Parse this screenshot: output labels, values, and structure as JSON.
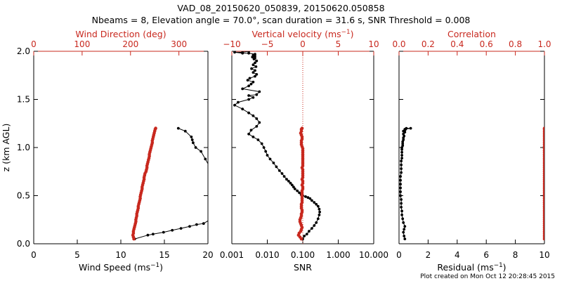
{
  "page": {
    "title_line1": "VAD_08_20150620_050839, 20150620.050858",
    "title_line2": "Nbeams = 8, Elevation angle = 70.0°, scan duration = 31.6 s, SNR Threshold = 0.008",
    "footer": "Plot created on Mon Oct 12 20:28:45 2015"
  },
  "colors": {
    "primary": "#000000",
    "accent": "#c8281e",
    "background": "#ffffff"
  },
  "chart_data": [
    {
      "type": "line",
      "panel": "wind",
      "ylabel": "z (km AGL)",
      "ylim": [
        0,
        2.0
      ],
      "y_ticks": [
        0.0,
        0.5,
        1.0,
        1.5,
        2.0
      ],
      "y_tick_labels": [
        "0.0",
        "0.5",
        "1.0",
        "1.5",
        "2.0"
      ],
      "xlabel_bottom": "Wind Speed (ms-1)",
      "xlim_bottom": [
        0,
        20
      ],
      "x_ticks_bottom": [
        0,
        5,
        10,
        15,
        20
      ],
      "x_tick_labels_bottom": [
        "0",
        "5",
        "10",
        "15",
        "20"
      ],
      "xlabel_top": "Wind Direction (deg)",
      "xlim_top": [
        0,
        360
      ],
      "x_ticks_top": [
        0,
        100,
        200,
        300
      ],
      "x_tick_labels_top": [
        "0",
        "100",
        "200",
        "300"
      ],
      "series": [
        {
          "axis": "bottom",
          "marker": "dot",
          "color": "#000000",
          "x": [
            11.6,
            13.1,
            13.7,
            14.9,
            15.9,
            16.9,
            17.9,
            18.7,
            19.5,
            20.2,
            20.2,
            19.7,
            19.2,
            18.6,
            18.3,
            18.2,
            18.1,
            17.4,
            16.6
          ],
          "y": [
            0.05,
            0.09,
            0.1,
            0.12,
            0.14,
            0.16,
            0.18,
            0.2,
            0.21,
            0.25,
            0.8,
            0.88,
            0.96,
            1.0,
            1.05,
            1.08,
            1.11,
            1.17,
            1.2
          ]
        },
        {
          "axis": "top",
          "marker": "dot",
          "color": "#c8281e",
          "x": [
            207,
            206,
            205,
            206,
            206,
            207,
            208,
            209,
            210,
            211,
            211,
            212,
            213,
            213,
            214,
            215,
            216,
            216,
            217,
            218,
            219,
            220,
            220,
            221,
            222,
            223,
            224,
            224,
            225,
            226,
            227,
            228,
            228,
            229,
            230,
            232,
            233,
            234,
            234,
            235,
            236,
            237,
            238,
            239,
            239,
            240,
            241,
            242,
            243,
            244,
            245,
            245,
            246,
            247,
            248,
            249,
            250,
            251,
            252
          ],
          "y": [
            0.05,
            0.07,
            0.09,
            0.11,
            0.13,
            0.15,
            0.17,
            0.19,
            0.21,
            0.23,
            0.25,
            0.27,
            0.29,
            0.31,
            0.33,
            0.35,
            0.37,
            0.39,
            0.41,
            0.43,
            0.45,
            0.47,
            0.49,
            0.51,
            0.53,
            0.55,
            0.57,
            0.59,
            0.61,
            0.63,
            0.65,
            0.67,
            0.69,
            0.71,
            0.73,
            0.75,
            0.77,
            0.79,
            0.81,
            0.83,
            0.85,
            0.87,
            0.89,
            0.91,
            0.93,
            0.95,
            0.97,
            0.99,
            1.01,
            1.03,
            1.05,
            1.07,
            1.09,
            1.11,
            1.13,
            1.15,
            1.17,
            1.19,
            1.2
          ]
        }
      ]
    },
    {
      "type": "line",
      "panel": "snr",
      "ylim": [
        0,
        2.0
      ],
      "y_ticks": [
        0.0,
        0.5,
        1.0,
        1.5,
        2.0
      ],
      "xlabel_bottom": "SNR",
      "xscale_bottom": "log",
      "xlim_bottom": [
        0.001,
        10
      ],
      "x_ticks_bottom": [
        0.001,
        0.01,
        0.1,
        1,
        10
      ],
      "x_tick_labels_bottom": [
        "0.001",
        "0.010",
        "0.100",
        "1.000",
        "10.000"
      ],
      "xlabel_top": "Vertical velocity (ms-1)",
      "xlim_top": [
        -10,
        10
      ],
      "x_ticks_top": [
        -10,
        -5,
        0,
        5,
        10
      ],
      "x_tick_labels_top": [
        "−10",
        "−5",
        "0",
        "5",
        "10"
      ],
      "reference_line_top_x": 0,
      "series": [
        {
          "axis": "bottom",
          "marker": "dot",
          "color": "#000000",
          "x": [
            0.1,
            0.11,
            0.13,
            0.15,
            0.18,
            0.21,
            0.24,
            0.27,
            0.29,
            0.3,
            0.29,
            0.27,
            0.24,
            0.21,
            0.18,
            0.16,
            0.14,
            0.12,
            0.1,
            0.09,
            0.08,
            0.07,
            0.06,
            0.055,
            0.05,
            0.045,
            0.04,
            0.035,
            0.03,
            0.026,
            0.022,
            0.018,
            0.015,
            0.012,
            0.01,
            0.009,
            0.008,
            0.007,
            0.0055,
            0.004,
            0.003,
            0.0035,
            0.005,
            0.006,
            0.005,
            0.004,
            0.003,
            0.002,
            0.0012,
            0.0015,
            0.003,
            0.004,
            0.003,
            0.005,
            0.006,
            0.002,
            0.003,
            0.0035,
            0.004,
            0.0028,
            0.0032,
            0.0045,
            0.005,
            0.004,
            0.0045,
            0.0036,
            0.0048,
            0.004,
            0.0045,
            0.005,
            0.0042,
            0.0045,
            0.0038,
            0.0045,
            0.004,
            0.0045,
            0.003,
            0.002,
            0.0012,
            0.002,
            0.003
          ],
          "y": [
            0.05,
            0.08,
            0.1,
            0.13,
            0.16,
            0.19,
            0.22,
            0.26,
            0.3,
            0.33,
            0.36,
            0.39,
            0.41,
            0.43,
            0.45,
            0.47,
            0.48,
            0.49,
            0.5,
            0.51,
            0.53,
            0.55,
            0.57,
            0.59,
            0.61,
            0.63,
            0.65,
            0.67,
            0.7,
            0.73,
            0.76,
            0.8,
            0.84,
            0.88,
            0.92,
            0.96,
            1.0,
            1.04,
            1.08,
            1.11,
            1.14,
            1.18,
            1.22,
            1.26,
            1.3,
            1.33,
            1.36,
            1.4,
            1.44,
            1.47,
            1.5,
            1.52,
            1.54,
            1.55,
            1.58,
            1.61,
            1.64,
            1.66,
            1.68,
            1.7,
            1.72,
            1.74,
            1.76,
            1.78,
            1.8,
            1.82,
            1.84,
            1.86,
            1.88,
            1.9,
            1.92,
            1.93,
            1.94,
            1.95,
            1.96,
            1.97,
            1.98,
            1.98,
            1.99,
            1.99,
            2.0
          ]
        },
        {
          "axis": "top",
          "marker": "dot",
          "color": "#c8281e",
          "x": [
            -0.2,
            -0.4,
            -0.6,
            -0.5,
            -0.3,
            -0.2,
            -0.1,
            -0.2,
            -0.3,
            -0.4,
            -0.4,
            -0.3,
            -0.2,
            -0.2,
            -0.1,
            -0.1,
            -0.2,
            -0.2,
            -0.2,
            -0.1,
            -0.1,
            -0.1,
            -0.1,
            -0.1,
            -0.1,
            -0.1,
            0.0,
            0.0,
            -0.1,
            0.0,
            0.0,
            -0.1,
            0.0,
            0.0,
            0.0,
            0.0,
            0.0,
            -0.1,
            0.0,
            0.0,
            0.0,
            0.0,
            0.0,
            0.0,
            0.0,
            0.0,
            0.0,
            0.0,
            -0.1,
            -0.2,
            -0.2,
            -0.2,
            -0.1,
            -0.1,
            -0.2,
            -0.3,
            -0.2,
            -0.2,
            -0.1
          ],
          "y": [
            0.05,
            0.07,
            0.09,
            0.11,
            0.13,
            0.15,
            0.17,
            0.19,
            0.21,
            0.23,
            0.25,
            0.27,
            0.29,
            0.31,
            0.33,
            0.35,
            0.37,
            0.39,
            0.41,
            0.43,
            0.45,
            0.47,
            0.49,
            0.51,
            0.53,
            0.55,
            0.57,
            0.59,
            0.61,
            0.63,
            0.65,
            0.67,
            0.69,
            0.71,
            0.73,
            0.75,
            0.77,
            0.79,
            0.81,
            0.83,
            0.85,
            0.87,
            0.89,
            0.91,
            0.93,
            0.95,
            0.97,
            0.99,
            1.01,
            1.03,
            1.05,
            1.07,
            1.09,
            1.11,
            1.13,
            1.15,
            1.17,
            1.19,
            1.2
          ]
        }
      ]
    },
    {
      "type": "line",
      "panel": "residual",
      "ylim": [
        0,
        2.0
      ],
      "y_ticks": [
        0.0,
        0.5,
        1.0,
        1.5,
        2.0
      ],
      "xlabel_bottom": "Residual (ms-1)",
      "xlim_bottom": [
        0,
        10
      ],
      "x_ticks_bottom": [
        0,
        2,
        4,
        6,
        8,
        10
      ],
      "x_tick_labels_bottom": [
        "0",
        "2",
        "4",
        "6",
        "8",
        "10"
      ],
      "xlabel_top": "Correlation",
      "xlim_top": [
        0,
        1.0
      ],
      "x_ticks_top": [
        0.0,
        0.2,
        0.4,
        0.6,
        0.8,
        1.0
      ],
      "x_tick_labels_top": [
        "0.0",
        "0.2",
        "0.4",
        "0.6",
        "0.8",
        "1.0"
      ],
      "series": [
        {
          "axis": "bottom",
          "marker": "dot",
          "color": "#000000",
          "x": [
            0.4,
            0.35,
            0.3,
            0.35,
            0.4,
            0.3,
            0.25,
            0.2,
            0.2,
            0.15,
            0.15,
            0.15,
            0.1,
            0.1,
            0.1,
            0.1,
            0.1,
            0.1,
            0.15,
            0.15,
            0.15,
            0.15,
            0.2,
            0.2,
            0.2,
            0.2,
            0.2,
            0.25,
            0.25,
            0.25,
            0.3,
            0.3,
            0.35,
            0.3,
            0.4,
            0.3,
            0.4,
            0.45,
            0.5,
            0.8,
            0.4
          ],
          "y": [
            0.05,
            0.08,
            0.12,
            0.15,
            0.18,
            0.22,
            0.26,
            0.3,
            0.34,
            0.38,
            0.42,
            0.46,
            0.5,
            0.54,
            0.58,
            0.62,
            0.66,
            0.7,
            0.74,
            0.78,
            0.82,
            0.86,
            0.89,
            0.92,
            0.95,
            0.98,
            1.0,
            1.02,
            1.04,
            1.06,
            1.08,
            1.1,
            1.12,
            1.14,
            1.16,
            1.17,
            1.18,
            1.19,
            1.2,
            1.2,
            1.19
          ]
        },
        {
          "axis": "top",
          "marker": "dot",
          "color": "#c8281e",
          "x": [
            1.0,
            1.0,
            1.0,
            1.0,
            1.0,
            1.0,
            1.0,
            1.0,
            1.0,
            1.0,
            1.0,
            1.0,
            1.0,
            1.0,
            1.0,
            1.0,
            1.0,
            1.0,
            1.0,
            1.0,
            1.0,
            1.0,
            1.0,
            1.0,
            1.0,
            1.0,
            1.0,
            1.0,
            1.0,
            1.0,
            1.0,
            1.0,
            1.0,
            1.0,
            1.0,
            1.0,
            1.0,
            1.0,
            1.0,
            1.0,
            1.0,
            1.0,
            1.0,
            1.0,
            1.0,
            1.0,
            1.0,
            1.0,
            1.0,
            1.0,
            1.0,
            1.0,
            1.0,
            1.0,
            1.0,
            1.0,
            1.0,
            1.0,
            1.0
          ],
          "y": [
            0.05,
            0.07,
            0.09,
            0.11,
            0.13,
            0.15,
            0.17,
            0.19,
            0.21,
            0.23,
            0.25,
            0.27,
            0.29,
            0.31,
            0.33,
            0.35,
            0.37,
            0.39,
            0.41,
            0.43,
            0.45,
            0.47,
            0.49,
            0.51,
            0.53,
            0.55,
            0.57,
            0.59,
            0.61,
            0.63,
            0.65,
            0.67,
            0.69,
            0.71,
            0.73,
            0.75,
            0.77,
            0.79,
            0.81,
            0.83,
            0.85,
            0.87,
            0.89,
            0.91,
            0.93,
            0.95,
            0.97,
            0.99,
            1.01,
            1.03,
            1.05,
            1.07,
            1.09,
            1.11,
            1.13,
            1.15,
            1.17,
            1.19,
            1.2
          ]
        }
      ]
    }
  ]
}
